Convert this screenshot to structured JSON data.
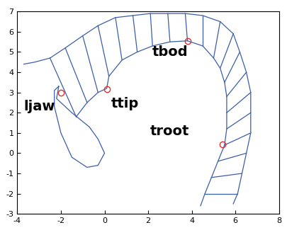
{
  "chart_data": {
    "type": "line",
    "color": "#3b5ea8",
    "xlim": [
      -4,
      8
    ],
    "ylim": [
      -3,
      7
    ],
    "xticks": [
      -4,
      -2,
      0,
      2,
      4,
      6,
      8
    ],
    "yticks": [
      -3,
      -2,
      -1,
      0,
      1,
      2,
      3,
      4,
      5,
      6,
      7
    ],
    "series": [
      {
        "x": [
          -3.7,
          -3.2,
          -2.5,
          -1.8,
          -1.0,
          -0.3,
          0.5,
          1.3,
          2.1,
          2.9,
          3.7,
          4.5,
          5.3,
          5.9,
          6.2,
          6.5,
          6.7,
          6.7,
          6.7,
          6.5,
          6.3,
          6.1,
          5.9
        ],
        "y": [
          4.4,
          4.5,
          4.7,
          5.2,
          5.8,
          6.3,
          6.7,
          6.8,
          6.9,
          6.9,
          6.9,
          6.8,
          6.5,
          5.9,
          5.0,
          4.0,
          3.0,
          2.0,
          1.0,
          0.0,
          -1.0,
          -2.0,
          -2.5
        ]
      },
      {
        "x": [
          -1.3,
          -0.8,
          -0.3,
          0.1,
          0.2,
          0.8,
          1.5,
          2.2,
          3.0,
          3.8,
          4.5,
          5.0,
          5.3,
          5.5,
          5.6,
          5.6,
          5.6,
          5.5,
          5.2,
          4.9,
          4.6,
          4.4
        ],
        "y": [
          1.8,
          2.5,
          3.0,
          3.2,
          3.8,
          4.6,
          5.0,
          5.3,
          5.5,
          5.55,
          5.3,
          4.7,
          4.2,
          3.5,
          2.8,
          2.0,
          1.2,
          0.4,
          -0.4,
          -1.2,
          -2.0,
          -2.6
        ]
      },
      {
        "x": [
          -2.1,
          -2.2,
          -1.5,
          -0.7,
          -0.3,
          0.0,
          -0.3,
          -0.8,
          -1.5,
          -2.0,
          -2.3,
          -2.3,
          -2.1
        ],
        "y": [
          3.3,
          2.7,
          2.0,
          1.3,
          0.7,
          0.0,
          -0.6,
          -0.7,
          -0.2,
          1.0,
          2.3,
          3.1,
          3.3
        ]
      },
      {
        "x": [
          -2.5,
          -1.3
        ],
        "y": [
          4.7,
          1.8
        ]
      },
      {
        "x": [
          -1.8,
          -0.8
        ],
        "y": [
          5.2,
          2.5
        ]
      },
      {
        "x": [
          -1.0,
          -0.3
        ],
        "y": [
          5.8,
          3.0
        ]
      },
      {
        "x": [
          -0.3,
          0.2
        ],
        "y": [
          6.3,
          3.8
        ]
      },
      {
        "x": [
          0.5,
          0.8
        ],
        "y": [
          6.7,
          4.6
        ]
      },
      {
        "x": [
          1.3,
          1.5
        ],
        "y": [
          6.8,
          5.0
        ]
      },
      {
        "x": [
          2.1,
          2.2
        ],
        "y": [
          6.9,
          5.3
        ]
      },
      {
        "x": [
          2.9,
          3.0
        ],
        "y": [
          6.9,
          5.5
        ]
      },
      {
        "x": [
          3.7,
          3.8
        ],
        "y": [
          6.9,
          5.55
        ]
      },
      {
        "x": [
          4.5,
          4.5
        ],
        "y": [
          6.8,
          5.3
        ]
      },
      {
        "x": [
          5.3,
          5.0
        ],
        "y": [
          6.5,
          4.7
        ]
      },
      {
        "x": [
          5.9,
          5.3
        ],
        "y": [
          5.9,
          4.2
        ]
      },
      {
        "x": [
          6.2,
          5.5
        ],
        "y": [
          5.0,
          3.5
        ]
      },
      {
        "x": [
          6.5,
          5.6
        ],
        "y": [
          4.0,
          2.8
        ]
      },
      {
        "x": [
          6.7,
          5.6
        ],
        "y": [
          3.0,
          2.0
        ]
      },
      {
        "x": [
          6.7,
          5.6
        ],
        "y": [
          2.0,
          1.2
        ]
      },
      {
        "x": [
          6.7,
          5.5
        ],
        "y": [
          1.0,
          0.4
        ]
      },
      {
        "x": [
          6.5,
          5.2
        ],
        "y": [
          0.0,
          -0.4
        ]
      },
      {
        "x": [
          6.3,
          4.9
        ],
        "y": [
          -1.0,
          -1.2
        ]
      },
      {
        "x": [
          6.1,
          4.6
        ],
        "y": [
          -2.0,
          -2.0
        ]
      }
    ],
    "points": [
      {
        "label": "ljaw",
        "x": -2.0,
        "y": 3.0
      },
      {
        "label": "ttip",
        "x": 0.1,
        "y": 3.15
      },
      {
        "label": "tbod",
        "x": 3.8,
        "y": 5.55
      },
      {
        "label": "troot",
        "x": 5.4,
        "y": 0.45
      }
    ],
    "point_color": "#e03030"
  }
}
